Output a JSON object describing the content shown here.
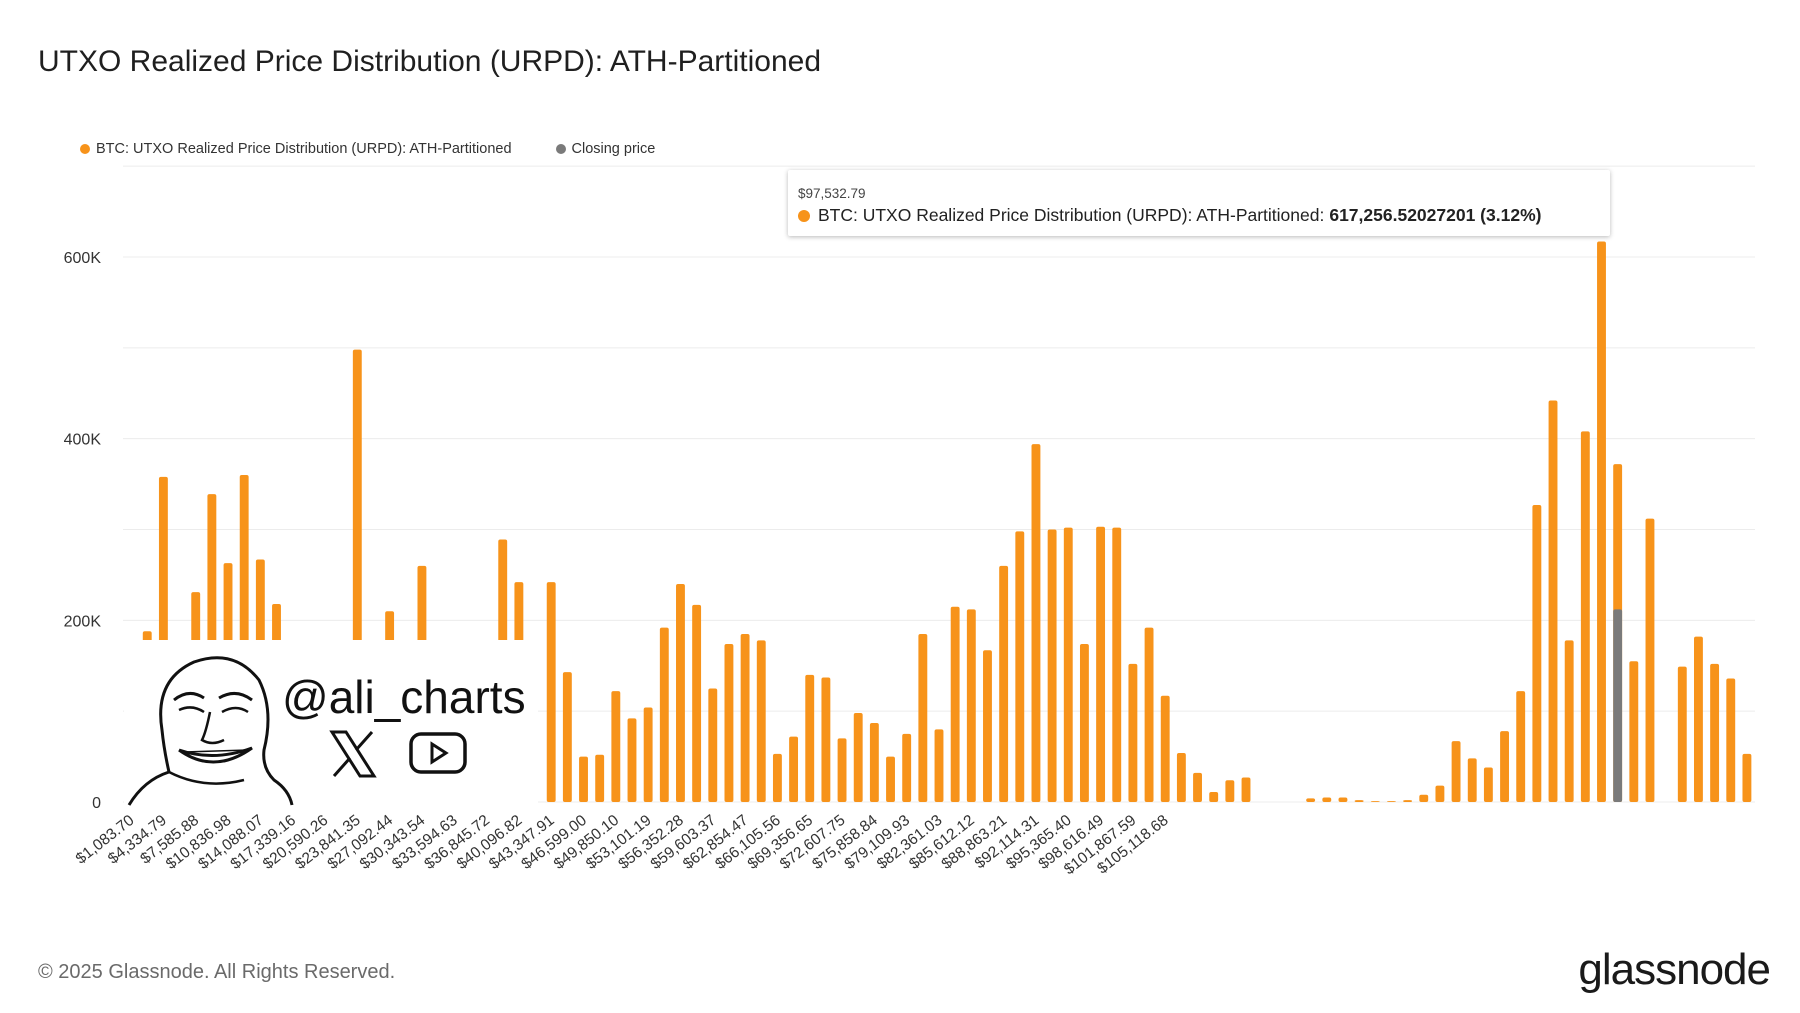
{
  "title": "UTXO Realized Price Distribution (URPD): ATH-Partitioned",
  "legend": [
    {
      "label": "BTC: UTXO Realized Price Distribution (URPD): ATH-Partitioned",
      "color": "#f7931a"
    },
    {
      "label": "Closing price",
      "color": "#7a7a7a"
    }
  ],
  "tooltip": {
    "x": "$97,532.79",
    "series": "BTC: UTXO Realized Price Distribution (URPD): ATH-Partitioned:",
    "value": "617,256.52027201 (3.12%)"
  },
  "watermark": {
    "handle": "@ali_charts",
    "icons": [
      "x-logo-icon",
      "youtube-icon"
    ]
  },
  "footer": "© 2025 Glassnode. All Rights Reserved.",
  "brand": "glassnode",
  "chart_data": {
    "type": "bar",
    "y_ticks": [
      "0",
      "200K",
      "400K",
      "600K"
    ],
    "ylim": [
      0,
      700000
    ],
    "grid": true,
    "legend_position": "top-left",
    "x_tick_labels": [
      "$1,083.70",
      "$4,334.79",
      "$7,585.88",
      "$10,836.98",
      "$14,088.07",
      "$17,339.16",
      "$20,590.26",
      "$23,841.35",
      "$27,092.44",
      "$30,343.54",
      "$33,594.63",
      "$36,845.72",
      "$40,096.82",
      "$43,347.91",
      "$46,599.00",
      "$49,850.10",
      "$53,101.19",
      "$56,352.28",
      "$59,603.37",
      "$62,854.47",
      "$66,105.56",
      "$69,356.65",
      "$72,607.75",
      "$75,858.84",
      "$79,109.93",
      "$82,361.03",
      "$85,612.12",
      "$88,863.21",
      "$92,114.31",
      "$95,365.40",
      "$98,616.49",
      "$101,867.59",
      "$105,118.68"
    ],
    "bin_start": 1083.7,
    "bin_width": 1625.545,
    "closing_price_bin": 92,
    "series": [
      {
        "name": "BTC: UTXO Realized Price Distribution (URPD): ATH-Partitioned",
        "values": [
          0,
          188000,
          358000,
          0,
          231000,
          339000,
          263000,
          360000,
          267000,
          218000,
          0,
          0,
          0,
          0,
          498000,
          0,
          210000,
          0,
          260000,
          0,
          0,
          0,
          0,
          289000,
          242000,
          0,
          242000,
          143000,
          50000,
          52000,
          122000,
          92000,
          104000,
          192000,
          240000,
          217000,
          125000,
          174000,
          185000,
          178000,
          53000,
          72000,
          140000,
          137000,
          70000,
          98000,
          87000,
          50000,
          75000,
          185000,
          80000,
          215000,
          212000,
          167000,
          260000,
          298000,
          394000,
          300000,
          302000,
          174000,
          303000,
          302000,
          152000,
          192000,
          117000,
          54000,
          32000,
          11000,
          24000,
          27000,
          0,
          0,
          0,
          4000,
          5000,
          5000,
          2000,
          1000,
          1000,
          2000,
          8000,
          18000,
          67000,
          48000,
          38000,
          78000,
          122000,
          327000,
          442000,
          178000,
          408000,
          617000,
          372000,
          155000,
          312000,
          0,
          149000,
          182000,
          152000,
          136000,
          53000
        ]
      },
      {
        "name": "Closing price",
        "bin": 92,
        "value": 212000
      }
    ]
  }
}
